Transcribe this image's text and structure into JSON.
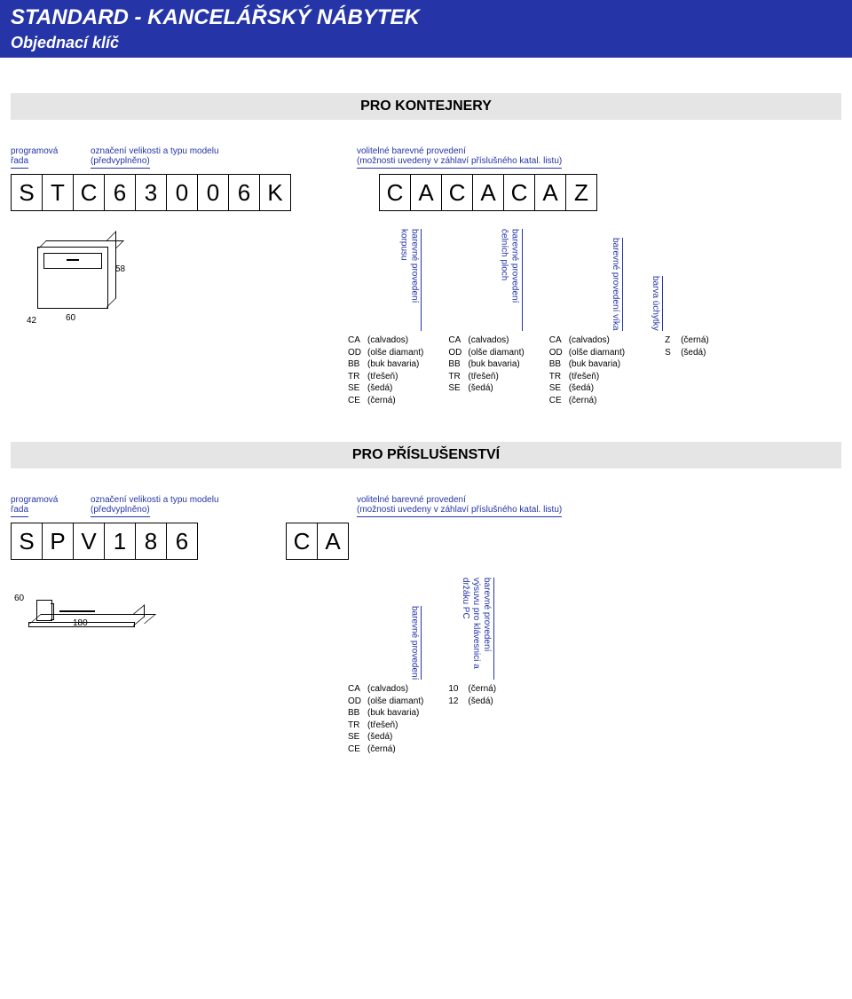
{
  "header": {
    "title": "STANDARD - KANCELÁŘSKÝ NÁBYTEK",
    "subtitle": "Objednací klíč"
  },
  "colors": {
    "brand": "#2535a8",
    "section_bg": "#e5e5e5",
    "text": "#000000",
    "page_bg": "#ffffff"
  },
  "section1": {
    "title": "PRO KONTEJNERY",
    "left_label": {
      "c1_l1": "programová",
      "c1_l2": "řada",
      "c2_l1": "označení velikosti a typu modelu",
      "c2_l2": "(předvyplněno)"
    },
    "right_label": {
      "l1": "volitelné barevné provedení",
      "l2": "(možnosti uvedeny v záhlaví příslušného katal. listu)"
    },
    "code_left": [
      "S",
      "T",
      "C",
      "6",
      "3",
      "0",
      "0",
      "6",
      "K"
    ],
    "code_right": [
      "C",
      "A",
      "C",
      "A",
      "C",
      "A",
      "Z"
    ],
    "drawing": {
      "dim_h": "58",
      "dim_d": "60",
      "dim_w": "42"
    },
    "legends": [
      {
        "vlabel": "barevné provedení\nkorpusu",
        "items": [
          {
            "code": "CA",
            "name": "(calvados)"
          },
          {
            "code": "OD",
            "name": "(olše diamant)"
          },
          {
            "code": "BB",
            "name": "(buk bavaria)"
          },
          {
            "code": "TR",
            "name": "(třešeň)"
          },
          {
            "code": "SE",
            "name": "(šedá)"
          },
          {
            "code": "CE",
            "name": "(černá)"
          }
        ]
      },
      {
        "vlabel": "barevné provedení\nčelních ploch",
        "items": [
          {
            "code": "CA",
            "name": "(calvados)"
          },
          {
            "code": "OD",
            "name": "(olše diamant)"
          },
          {
            "code": "BB",
            "name": "(buk bavaria)"
          },
          {
            "code": "TR",
            "name": "(třešeň)"
          },
          {
            "code": "SE",
            "name": "(šedá)"
          }
        ]
      },
      {
        "vlabel": "barevné provedení\nvíka",
        "items": [
          {
            "code": "CA",
            "name": "(calvados)"
          },
          {
            "code": "OD",
            "name": "(olše diamant)"
          },
          {
            "code": "BB",
            "name": "(buk bavaria)"
          },
          {
            "code": "TR",
            "name": "(třešeň)"
          },
          {
            "code": "SE",
            "name": "(šedá)"
          },
          {
            "code": "CE",
            "name": "(černá)"
          }
        ]
      },
      {
        "vlabel": "barva úchytky",
        "items": []
      }
    ],
    "extra": [
      {
        "code": "Z",
        "name": "(černá)"
      },
      {
        "code": "S",
        "name": "(šedá)"
      }
    ]
  },
  "section2": {
    "title": "PRO PŘÍSLUŠENSTVÍ",
    "left_label": {
      "c1_l1": "programová",
      "c1_l2": "řada",
      "c2_l1": "označení velikosti a typu modelu",
      "c2_l2": "(předvyplněno)"
    },
    "right_label": {
      "l1": "volitelné barevné provedení",
      "l2": "(možnosti uvedeny v záhlaví příslušného katal. listu)"
    },
    "code_left": [
      "S",
      "P",
      "V",
      "1",
      "8",
      "6"
    ],
    "code_right": [
      "C",
      "A"
    ],
    "drawing": {
      "dim_d": "60",
      "dim_w": "180"
    },
    "legends": [
      {
        "vlabel": "barevné provedení",
        "items": [
          {
            "code": "CA",
            "name": "(calvados)"
          },
          {
            "code": "OD",
            "name": "(olše diamant)"
          },
          {
            "code": "BB",
            "name": "(buk bavaria)"
          },
          {
            "code": "TR",
            "name": "(třešeň)"
          },
          {
            "code": "SE",
            "name": "(šedá)"
          },
          {
            "code": "CE",
            "name": "(černá)"
          }
        ]
      },
      {
        "vlabel": "barevné provedení\nvýsuvu pro klávesnici\na držáku PC",
        "items": [
          {
            "code": "10",
            "name": "(černá)"
          },
          {
            "code": "12",
            "name": "(šedá)"
          }
        ]
      }
    ]
  }
}
